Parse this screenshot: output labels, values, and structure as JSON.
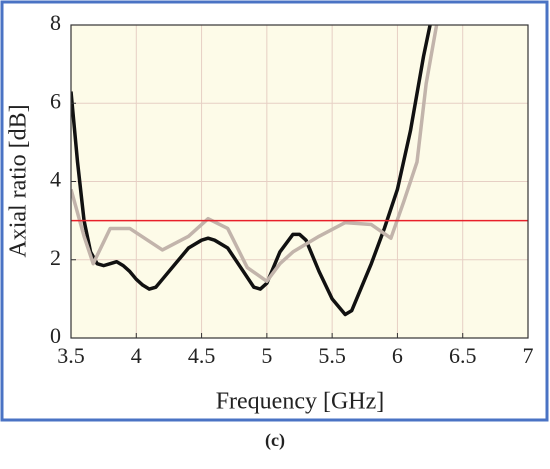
{
  "chart_data": {
    "type": "line",
    "xlabel": "Frequency [GHz]",
    "ylabel": "Axial ratio [dB]",
    "caption": "(c)",
    "xlim": [
      3.5,
      7
    ],
    "xticks": [
      3.5,
      4,
      4.5,
      5,
      5.5,
      6,
      6.5,
      7
    ],
    "ylim": [
      0,
      8
    ],
    "yticks": [
      0,
      2,
      4,
      6,
      8
    ],
    "grid": true,
    "series": [
      {
        "color": "#111111",
        "x": [
          3.5,
          3.55,
          3.6,
          3.65,
          3.7,
          3.75,
          3.8,
          3.85,
          3.9,
          3.95,
          4.0,
          4.05,
          4.1,
          4.15,
          4.2,
          4.3,
          4.4,
          4.5,
          4.55,
          4.6,
          4.7,
          4.8,
          4.9,
          4.95,
          5.0,
          5.1,
          5.2,
          5.25,
          5.3,
          5.4,
          5.5,
          5.6,
          5.65,
          5.7,
          5.8,
          5.9,
          6.0,
          6.1,
          6.2,
          6.25
        ],
        "values": [
          6.3,
          4.5,
          3.0,
          2.2,
          1.9,
          1.85,
          1.9,
          1.95,
          1.85,
          1.7,
          1.5,
          1.35,
          1.25,
          1.3,
          1.5,
          1.9,
          2.3,
          2.5,
          2.55,
          2.5,
          2.3,
          1.8,
          1.3,
          1.25,
          1.4,
          2.2,
          2.65,
          2.65,
          2.5,
          1.7,
          1.0,
          0.6,
          0.7,
          1.1,
          1.9,
          2.8,
          3.8,
          5.3,
          7.2,
          8.0
        ]
      },
      {
        "color": "#c2b4ab",
        "x": [
          3.5,
          3.6,
          3.67,
          3.8,
          3.95,
          4.2,
          4.4,
          4.55,
          4.7,
          4.85,
          5.0,
          5.1,
          5.2,
          5.4,
          5.6,
          5.8,
          5.95,
          6.05,
          6.15,
          6.22,
          6.3
        ],
        "values": [
          3.8,
          2.6,
          1.9,
          2.8,
          2.8,
          2.25,
          2.6,
          3.05,
          2.8,
          1.8,
          1.45,
          1.9,
          2.2,
          2.6,
          2.95,
          2.9,
          2.55,
          3.5,
          4.5,
          6.5,
          8.0
        ]
      },
      {
        "color": "#e8202a",
        "x": [
          3.5,
          7
        ],
        "values": [
          3,
          3
        ]
      }
    ]
  }
}
